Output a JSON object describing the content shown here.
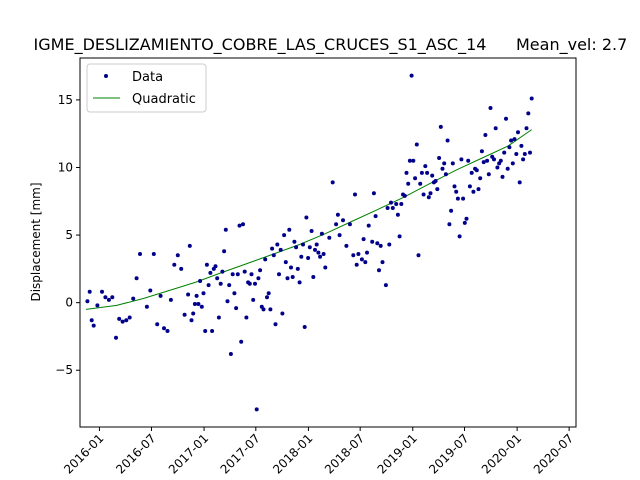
{
  "chart_data": {
    "type": "scatter",
    "title": "IGME_DESLIZAMIENTO_COBRE_LAS_CRUCES_S1_ASC_14",
    "title_right": "Mean_vel: 2.7",
    "xlabel": "",
    "ylabel": "Displacement [mm]",
    "x_axis_type": "date",
    "xlim": [
      "2015-10-25",
      "2020-07-25"
    ],
    "ylim": [
      -9.2,
      18.1
    ],
    "x_ticks": [
      "2016-01",
      "2016-07",
      "2017-01",
      "2017-07",
      "2018-01",
      "2018-07",
      "2019-01",
      "2019-07",
      "2020-01",
      "2020-07"
    ],
    "y_ticks": [
      -5,
      0,
      5,
      10,
      15
    ],
    "y_tick_labels": [
      "−5",
      "0",
      "5",
      "10",
      "15"
    ],
    "grid": false,
    "legend": {
      "placement": "top-left"
    },
    "colors": {
      "data": "#00008b",
      "fit": "#008000"
    },
    "series": [
      {
        "name": "Data",
        "kind": "points",
        "points": [
          [
            "2015-11-20",
            0.1
          ],
          [
            "2015-11-28",
            0.8
          ],
          [
            "2015-12-05",
            -1.3
          ],
          [
            "2015-12-12",
            -1.7
          ],
          [
            "2015-12-25",
            -0.2
          ],
          [
            "2016-01-10",
            0.8
          ],
          [
            "2016-01-22",
            0.4
          ],
          [
            "2016-02-03",
            0.2
          ],
          [
            "2016-02-15",
            0.4
          ],
          [
            "2016-02-28",
            -2.6
          ],
          [
            "2016-03-10",
            -1.2
          ],
          [
            "2016-03-22",
            -1.4
          ],
          [
            "2016-04-04",
            -1.3
          ],
          [
            "2016-04-16",
            -1.1
          ],
          [
            "2016-04-28",
            0.3
          ],
          [
            "2016-05-10",
            1.8
          ],
          [
            "2016-05-22",
            3.6
          ],
          [
            "2016-06-15",
            -0.3
          ],
          [
            "2016-06-27",
            0.9
          ],
          [
            "2016-07-09",
            3.6
          ],
          [
            "2016-07-21",
            -1.6
          ],
          [
            "2016-08-02",
            0.5
          ],
          [
            "2016-08-14",
            -1.9
          ],
          [
            "2016-08-26",
            -2.1
          ],
          [
            "2016-09-07",
            0.2
          ],
          [
            "2016-09-19",
            2.8
          ],
          [
            "2016-10-01",
            3.5
          ],
          [
            "2016-10-13",
            2.5
          ],
          [
            "2016-10-25",
            -0.9
          ],
          [
            "2016-11-06",
            0.6
          ],
          [
            "2016-11-12",
            4.2
          ],
          [
            "2016-11-18",
            -1.3
          ],
          [
            "2016-11-24",
            -0.8
          ],
          [
            "2016-11-30",
            -0.1
          ],
          [
            "2016-12-06",
            0.5
          ],
          [
            "2016-12-12",
            -0.1
          ],
          [
            "2016-12-18",
            1.6
          ],
          [
            "2016-12-24",
            -0.3
          ],
          [
            "2016-12-30",
            0.7
          ],
          [
            "2017-01-05",
            -2.1
          ],
          [
            "2017-01-11",
            2.8
          ],
          [
            "2017-01-17",
            1.3
          ],
          [
            "2017-01-23",
            2.2
          ],
          [
            "2017-01-29",
            -2.1
          ],
          [
            "2017-02-04",
            2.5
          ],
          [
            "2017-02-10",
            2.7
          ],
          [
            "2017-02-16",
            1.8
          ],
          [
            "2017-02-22",
            -1.1
          ],
          [
            "2017-02-28",
            1.4
          ],
          [
            "2017-03-06",
            2.3
          ],
          [
            "2017-03-12",
            3.8
          ],
          [
            "2017-03-18",
            5.4
          ],
          [
            "2017-03-24",
            0.1
          ],
          [
            "2017-03-30",
            1.3
          ],
          [
            "2017-04-05",
            -3.8
          ],
          [
            "2017-04-11",
            2.1
          ],
          [
            "2017-04-17",
            0.7
          ],
          [
            "2017-04-23",
            -0.4
          ],
          [
            "2017-04-29",
            2.1
          ],
          [
            "2017-05-05",
            5.7
          ],
          [
            "2017-05-11",
            -2.9
          ],
          [
            "2017-05-17",
            5.8
          ],
          [
            "2017-05-23",
            2.3
          ],
          [
            "2017-05-29",
            -1.1
          ],
          [
            "2017-06-04",
            1.5
          ],
          [
            "2017-06-10",
            1.4
          ],
          [
            "2017-06-16",
            2.1
          ],
          [
            "2017-06-22",
            0.2
          ],
          [
            "2017-06-28",
            1.4
          ],
          [
            "2017-07-04",
            -7.9
          ],
          [
            "2017-07-10",
            1.8
          ],
          [
            "2017-07-16",
            2.4
          ],
          [
            "2017-07-22",
            -0.3
          ],
          [
            "2017-07-28",
            -0.5
          ],
          [
            "2017-08-03",
            3.2
          ],
          [
            "2017-08-09",
            0.4
          ],
          [
            "2017-08-15",
            0.7
          ],
          [
            "2017-08-21",
            -0.5
          ],
          [
            "2017-08-27",
            4.0
          ],
          [
            "2017-09-02",
            3.5
          ],
          [
            "2017-09-08",
            -1.6
          ],
          [
            "2017-09-14",
            4.3
          ],
          [
            "2017-09-20",
            2.1
          ],
          [
            "2017-09-26",
            3.9
          ],
          [
            "2017-10-02",
            -0.8
          ],
          [
            "2017-10-08",
            5.0
          ],
          [
            "2017-10-14",
            3.0
          ],
          [
            "2017-10-20",
            1.8
          ],
          [
            "2017-10-26",
            5.4
          ],
          [
            "2017-11-01",
            2.6
          ],
          [
            "2017-11-07",
            1.9
          ],
          [
            "2017-11-13",
            4.5
          ],
          [
            "2017-11-19",
            4.1
          ],
          [
            "2017-11-25",
            2.5
          ],
          [
            "2017-12-01",
            1.5
          ],
          [
            "2017-12-07",
            3.4
          ],
          [
            "2017-12-13",
            4.3
          ],
          [
            "2017-12-19",
            -1.8
          ],
          [
            "2017-12-25",
            6.3
          ],
          [
            "2017-12-31",
            3.3
          ],
          [
            "2018-01-06",
            4.1
          ],
          [
            "2018-01-12",
            5.3
          ],
          [
            "2018-01-18",
            1.9
          ],
          [
            "2018-01-24",
            3.9
          ],
          [
            "2018-01-30",
            4.3
          ],
          [
            "2018-02-05",
            3.7
          ],
          [
            "2018-02-11",
            3.4
          ],
          [
            "2018-02-17",
            5.1
          ],
          [
            "2018-02-23",
            3.6
          ],
          [
            "2018-03-01",
            2.6
          ],
          [
            "2018-03-15",
            4.8
          ],
          [
            "2018-03-27",
            8.9
          ],
          [
            "2018-04-08",
            5.8
          ],
          [
            "2018-04-14",
            6.5
          ],
          [
            "2018-04-20",
            5.0
          ],
          [
            "2018-05-02",
            6.1
          ],
          [
            "2018-05-14",
            4.2
          ],
          [
            "2018-05-26",
            5.8
          ],
          [
            "2018-06-07",
            3.5
          ],
          [
            "2018-06-13",
            8.0
          ],
          [
            "2018-06-19",
            2.8
          ],
          [
            "2018-06-25",
            3.6
          ],
          [
            "2018-07-07",
            3.2
          ],
          [
            "2018-07-13",
            4.7
          ],
          [
            "2018-07-19",
            3.0
          ],
          [
            "2018-07-25",
            3.7
          ],
          [
            "2018-07-31",
            5.7
          ],
          [
            "2018-08-12",
            4.5
          ],
          [
            "2018-08-18",
            8.1
          ],
          [
            "2018-08-24",
            6.4
          ],
          [
            "2018-08-30",
            4.4
          ],
          [
            "2018-09-05",
            2.4
          ],
          [
            "2018-09-11",
            4.2
          ],
          [
            "2018-09-17",
            3.0
          ],
          [
            "2018-09-29",
            1.3
          ],
          [
            "2018-10-05",
            7.0
          ],
          [
            "2018-10-11",
            4.3
          ],
          [
            "2018-10-17",
            7.4
          ],
          [
            "2018-10-23",
            7.0
          ],
          [
            "2018-11-04",
            7.3
          ],
          [
            "2018-11-10",
            6.5
          ],
          [
            "2018-11-16",
            4.9
          ],
          [
            "2018-11-22",
            7.3
          ],
          [
            "2018-11-28",
            8.0
          ],
          [
            "2018-12-04",
            7.9
          ],
          [
            "2018-12-10",
            9.6
          ],
          [
            "2018-12-16",
            8.8
          ],
          [
            "2018-12-22",
            10.5
          ],
          [
            "2018-12-28",
            16.8
          ],
          [
            "2019-01-03",
            10.5
          ],
          [
            "2019-01-09",
            9.2
          ],
          [
            "2019-01-15",
            11.7
          ],
          [
            "2019-01-21",
            3.5
          ],
          [
            "2019-01-27",
            8.8
          ],
          [
            "2019-02-02",
            9.6
          ],
          [
            "2019-02-08",
            8.0
          ],
          [
            "2019-02-14",
            10.1
          ],
          [
            "2019-02-20",
            9.6
          ],
          [
            "2019-02-26",
            7.8
          ],
          [
            "2019-03-04",
            8.1
          ],
          [
            "2019-03-10",
            9.4
          ],
          [
            "2019-03-16",
            8.9
          ],
          [
            "2019-03-22",
            9.0
          ],
          [
            "2019-03-28",
            8.4
          ],
          [
            "2019-04-03",
            10.7
          ],
          [
            "2019-04-09",
            13.0
          ],
          [
            "2019-04-15",
            9.9
          ],
          [
            "2019-04-21",
            10.3
          ],
          [
            "2019-04-27",
            9.5
          ],
          [
            "2019-05-03",
            12.0
          ],
          [
            "2019-05-09",
            5.8
          ],
          [
            "2019-05-15",
            6.8
          ],
          [
            "2019-05-21",
            10.3
          ],
          [
            "2019-05-27",
            8.6
          ],
          [
            "2019-06-02",
            8.2
          ],
          [
            "2019-06-08",
            7.7
          ],
          [
            "2019-06-14",
            4.9
          ],
          [
            "2019-06-20",
            10.6
          ],
          [
            "2019-06-26",
            7.7
          ],
          [
            "2019-07-02",
            5.9
          ],
          [
            "2019-07-08",
            6.2
          ],
          [
            "2019-07-14",
            10.5
          ],
          [
            "2019-07-20",
            8.6
          ],
          [
            "2019-07-26",
            9.6
          ],
          [
            "2019-08-01",
            8.2
          ],
          [
            "2019-08-07",
            9.9
          ],
          [
            "2019-08-13",
            9.8
          ],
          [
            "2019-08-19",
            8.4
          ],
          [
            "2019-08-25",
            9.2
          ],
          [
            "2019-08-31",
            11.2
          ],
          [
            "2019-09-06",
            10.4
          ],
          [
            "2019-09-12",
            12.4
          ],
          [
            "2019-09-18",
            10.5
          ],
          [
            "2019-09-24",
            9.5
          ],
          [
            "2019-09-30",
            14.4
          ],
          [
            "2019-10-06",
            10.8
          ],
          [
            "2019-10-12",
            10.6
          ],
          [
            "2019-10-18",
            12.9
          ],
          [
            "2019-10-24",
            10.0
          ],
          [
            "2019-10-30",
            10.3
          ],
          [
            "2019-11-05",
            10.5
          ],
          [
            "2019-11-11",
            9.3
          ],
          [
            "2019-11-17",
            11.1
          ],
          [
            "2019-11-23",
            13.6
          ],
          [
            "2019-11-29",
            9.9
          ],
          [
            "2019-12-05",
            11.5
          ],
          [
            "2019-12-11",
            12.0
          ],
          [
            "2019-12-17",
            10.3
          ],
          [
            "2019-12-23",
            12.1
          ],
          [
            "2019-12-29",
            11.0
          ],
          [
            "2020-01-04",
            12.6
          ],
          [
            "2020-01-10",
            8.9
          ],
          [
            "2020-01-16",
            11.6
          ],
          [
            "2020-01-22",
            10.6
          ],
          [
            "2020-01-28",
            11.0
          ],
          [
            "2020-02-03",
            12.9
          ],
          [
            "2020-02-09",
            14.0
          ],
          [
            "2020-02-15",
            11.1
          ],
          [
            "2020-02-21",
            15.1
          ]
        ]
      },
      {
        "name": "Quadratic",
        "kind": "line",
        "points": [
          [
            "2015-11-15",
            -0.5
          ],
          [
            "2016-03-01",
            -0.2
          ],
          [
            "2016-06-01",
            0.3
          ],
          [
            "2016-09-01",
            0.9
          ],
          [
            "2016-12-01",
            1.5
          ],
          [
            "2017-03-01",
            2.2
          ],
          [
            "2017-06-01",
            2.9
          ],
          [
            "2017-09-01",
            3.6
          ],
          [
            "2017-12-01",
            4.3
          ],
          [
            "2018-03-01",
            5.1
          ],
          [
            "2018-06-01",
            6.0
          ],
          [
            "2018-09-01",
            6.9
          ],
          [
            "2018-12-01",
            7.8
          ],
          [
            "2019-03-01",
            8.8
          ],
          [
            "2019-06-01",
            9.8
          ],
          [
            "2019-09-01",
            10.7
          ],
          [
            "2019-12-01",
            11.6
          ],
          [
            "2020-02-21",
            12.8
          ]
        ]
      }
    ]
  }
}
